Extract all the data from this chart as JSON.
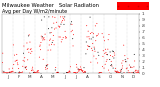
{
  "title": "Milwaukee Weather   Solar Radiation",
  "subtitle": "Avg per Day W/m2/minute",
  "bg_color": "#ffffff",
  "plot_bg": "#ffffff",
  "dot_color_main": "#ff0000",
  "dot_color_alt": "#000000",
  "legend_box_color": "#ff0000",
  "grid_color": "#bbbbbb",
  "ylim": [
    0,
    1.0
  ],
  "num_points": 365,
  "seed": 42,
  "tick_fontsize": 3.0,
  "title_fontsize": 3.8,
  "y_ticks": [
    0.0,
    0.1,
    0.2,
    0.3,
    0.4,
    0.5,
    0.6,
    0.7,
    0.8,
    0.9,
    1.0
  ],
  "y_tick_labels": [
    "0",
    ".1",
    ".2",
    ".3",
    ".4",
    ".5",
    ".6",
    ".7",
    ".8",
    ".9",
    "1"
  ],
  "month_labels": [
    "J",
    "F",
    "M",
    "A",
    "M",
    "J",
    "J",
    "A",
    "S",
    "O",
    "N",
    "D"
  ],
  "vline_positions": [
    31,
    59,
    90,
    120,
    151,
    181,
    212,
    243,
    273,
    304,
    334
  ],
  "month_starts": [
    1,
    32,
    60,
    91,
    121,
    152,
    182,
    213,
    244,
    274,
    305,
    335
  ]
}
